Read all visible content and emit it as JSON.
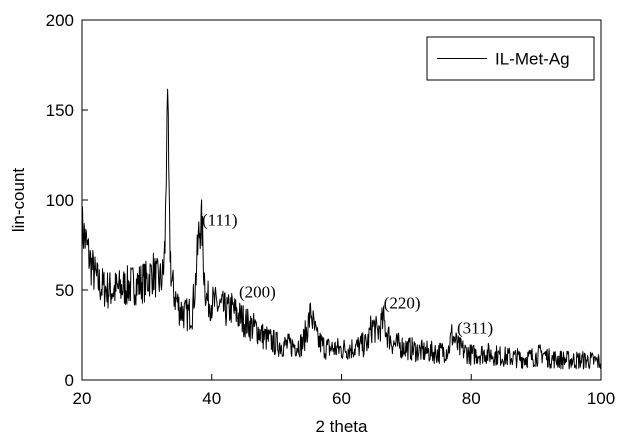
{
  "chart_data": {
    "type": "line",
    "title": "",
    "xlabel": "2 theta",
    "ylabel": "lin-count",
    "xlim": [
      20,
      100
    ],
    "ylim": [
      0,
      200
    ],
    "xticks": [
      20,
      40,
      60,
      80,
      100
    ],
    "yticks": [
      0,
      50,
      100,
      150,
      200
    ],
    "grid": false,
    "legend_position": "top-right",
    "line_color": "#000000",
    "series": [
      {
        "name": "IL-Met-Ag",
        "x": [
          20,
          20.5,
          21,
          21.5,
          22,
          22.5,
          23,
          24,
          25,
          26,
          27,
          28,
          29,
          30,
          30.5,
          31,
          31.5,
          32,
          32.5,
          32.8,
          33,
          33.1,
          33.3,
          33.5,
          33.8,
          34.2,
          35,
          36,
          37,
          37.5,
          38,
          38.3,
          38.5,
          38.8,
          39.2,
          39.6,
          40.5,
          41.5,
          42.5,
          43,
          44,
          45,
          46,
          47,
          48,
          50,
          52,
          54,
          54.8,
          55.3,
          55.7,
          56.3,
          57.5,
          60,
          62,
          64,
          64.5,
          65,
          65.5,
          66,
          66.5,
          67,
          68,
          70,
          72,
          75,
          76.5,
          77,
          77.5,
          78,
          80,
          82,
          85,
          88,
          90,
          91,
          92,
          95,
          98,
          100
        ],
        "y": [
          85,
          78,
          70,
          63,
          58,
          54,
          52,
          50,
          50,
          51,
          52,
          53,
          54,
          55,
          58,
          60,
          56,
          55,
          58,
          75,
          120,
          156,
          130,
          80,
          55,
          48,
          40,
          36,
          38,
          55,
          80,
          88,
          85,
          60,
          45,
          44,
          42,
          40,
          38,
          40,
          36,
          33,
          30,
          28,
          24,
          20,
          19,
          20,
          30,
          38,
          30,
          22,
          18,
          17,
          18,
          20,
          28,
          30,
          26,
          30,
          33,
          26,
          20,
          18,
          16,
          15,
          17,
          25,
          22,
          18,
          14,
          15,
          13,
          12,
          13,
          15,
          12,
          11,
          11,
          10
        ]
      }
    ],
    "annotations": [
      {
        "text": "(111)",
        "x": 38.5,
        "y": 88
      },
      {
        "text": "(200)",
        "x": 44.2,
        "y": 48
      },
      {
        "text": "(220)",
        "x": 66.5,
        "y": 42
      },
      {
        "text": "(311)",
        "x": 77.8,
        "y": 28
      }
    ]
  }
}
